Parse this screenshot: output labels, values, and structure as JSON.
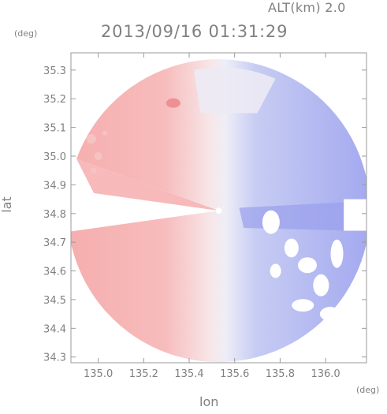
{
  "header": {
    "altitude_label": "ALT(km) 2.0",
    "timestamp": "2013/09/16 01:31:29",
    "units_left": "(deg)",
    "units_right": "(deg)"
  },
  "axes": {
    "xlabel": "lon",
    "ylabel": "lat"
  },
  "chart_data": {
    "type": "heatmap",
    "title": "2013/09/16 01:31:29",
    "subtitle": "ALT(km) 2.0",
    "xlabel": "lon",
    "ylabel": "lat",
    "x_unit": "(deg)",
    "y_unit": "(deg)",
    "xlim": [
      134.88,
      136.18
    ],
    "ylim": [
      34.28,
      35.36
    ],
    "x_ticks": [
      135.0,
      135.2,
      135.4,
      135.6,
      135.8,
      136.0
    ],
    "x_tick_labels": [
      "135.0",
      "135.2",
      "135.4",
      "135.6",
      "135.8",
      "136.0"
    ],
    "y_ticks": [
      34.3,
      34.4,
      34.5,
      34.6,
      34.7,
      34.8,
      34.9,
      35.0,
      35.1,
      35.2,
      35.3
    ],
    "y_tick_labels": [
      "34.3",
      "34.4",
      "34.5",
      "34.6",
      "34.7",
      "34.8",
      "34.9",
      "35.0",
      "35.1",
      "35.2",
      "35.3"
    ],
    "grid": false,
    "radar_center": [
      135.53,
      34.81
    ],
    "colors": {
      "positive": "#f4b0b0",
      "negative": "#a9aff2",
      "neutral": "#f3f2f5",
      "axis": "#9a9a9a",
      "text": "#808080"
    }
  }
}
